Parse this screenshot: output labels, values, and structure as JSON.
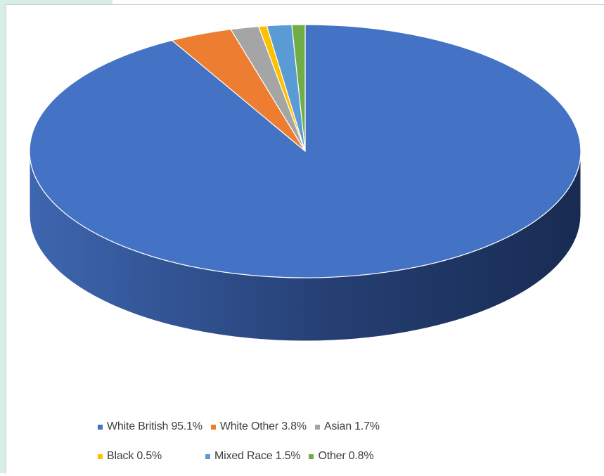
{
  "chart_data": {
    "type": "pie",
    "title": "",
    "style": "3d",
    "legend_position": "bottom",
    "series": [
      {
        "name": "White British",
        "value": 95.1,
        "color": "#4472c4",
        "label": "White British 95.1%"
      },
      {
        "name": "White Other",
        "value": 3.8,
        "color": "#ed7d31",
        "label": "White Other 3.8%"
      },
      {
        "name": "Asian",
        "value": 1.7,
        "color": "#a5a5a5",
        "label": "Asian 1.7%"
      },
      {
        "name": "Black",
        "value": 0.5,
        "color": "#ffc000",
        "label": "Black 0.5%"
      },
      {
        "name": "Mixed Race",
        "value": 1.5,
        "color": "#5b9bd5",
        "label": "Mixed Race 1.5%"
      },
      {
        "name": "Other",
        "value": 0.8,
        "color": "#70ad47",
        "label": "Other 0.8%"
      }
    ]
  }
}
